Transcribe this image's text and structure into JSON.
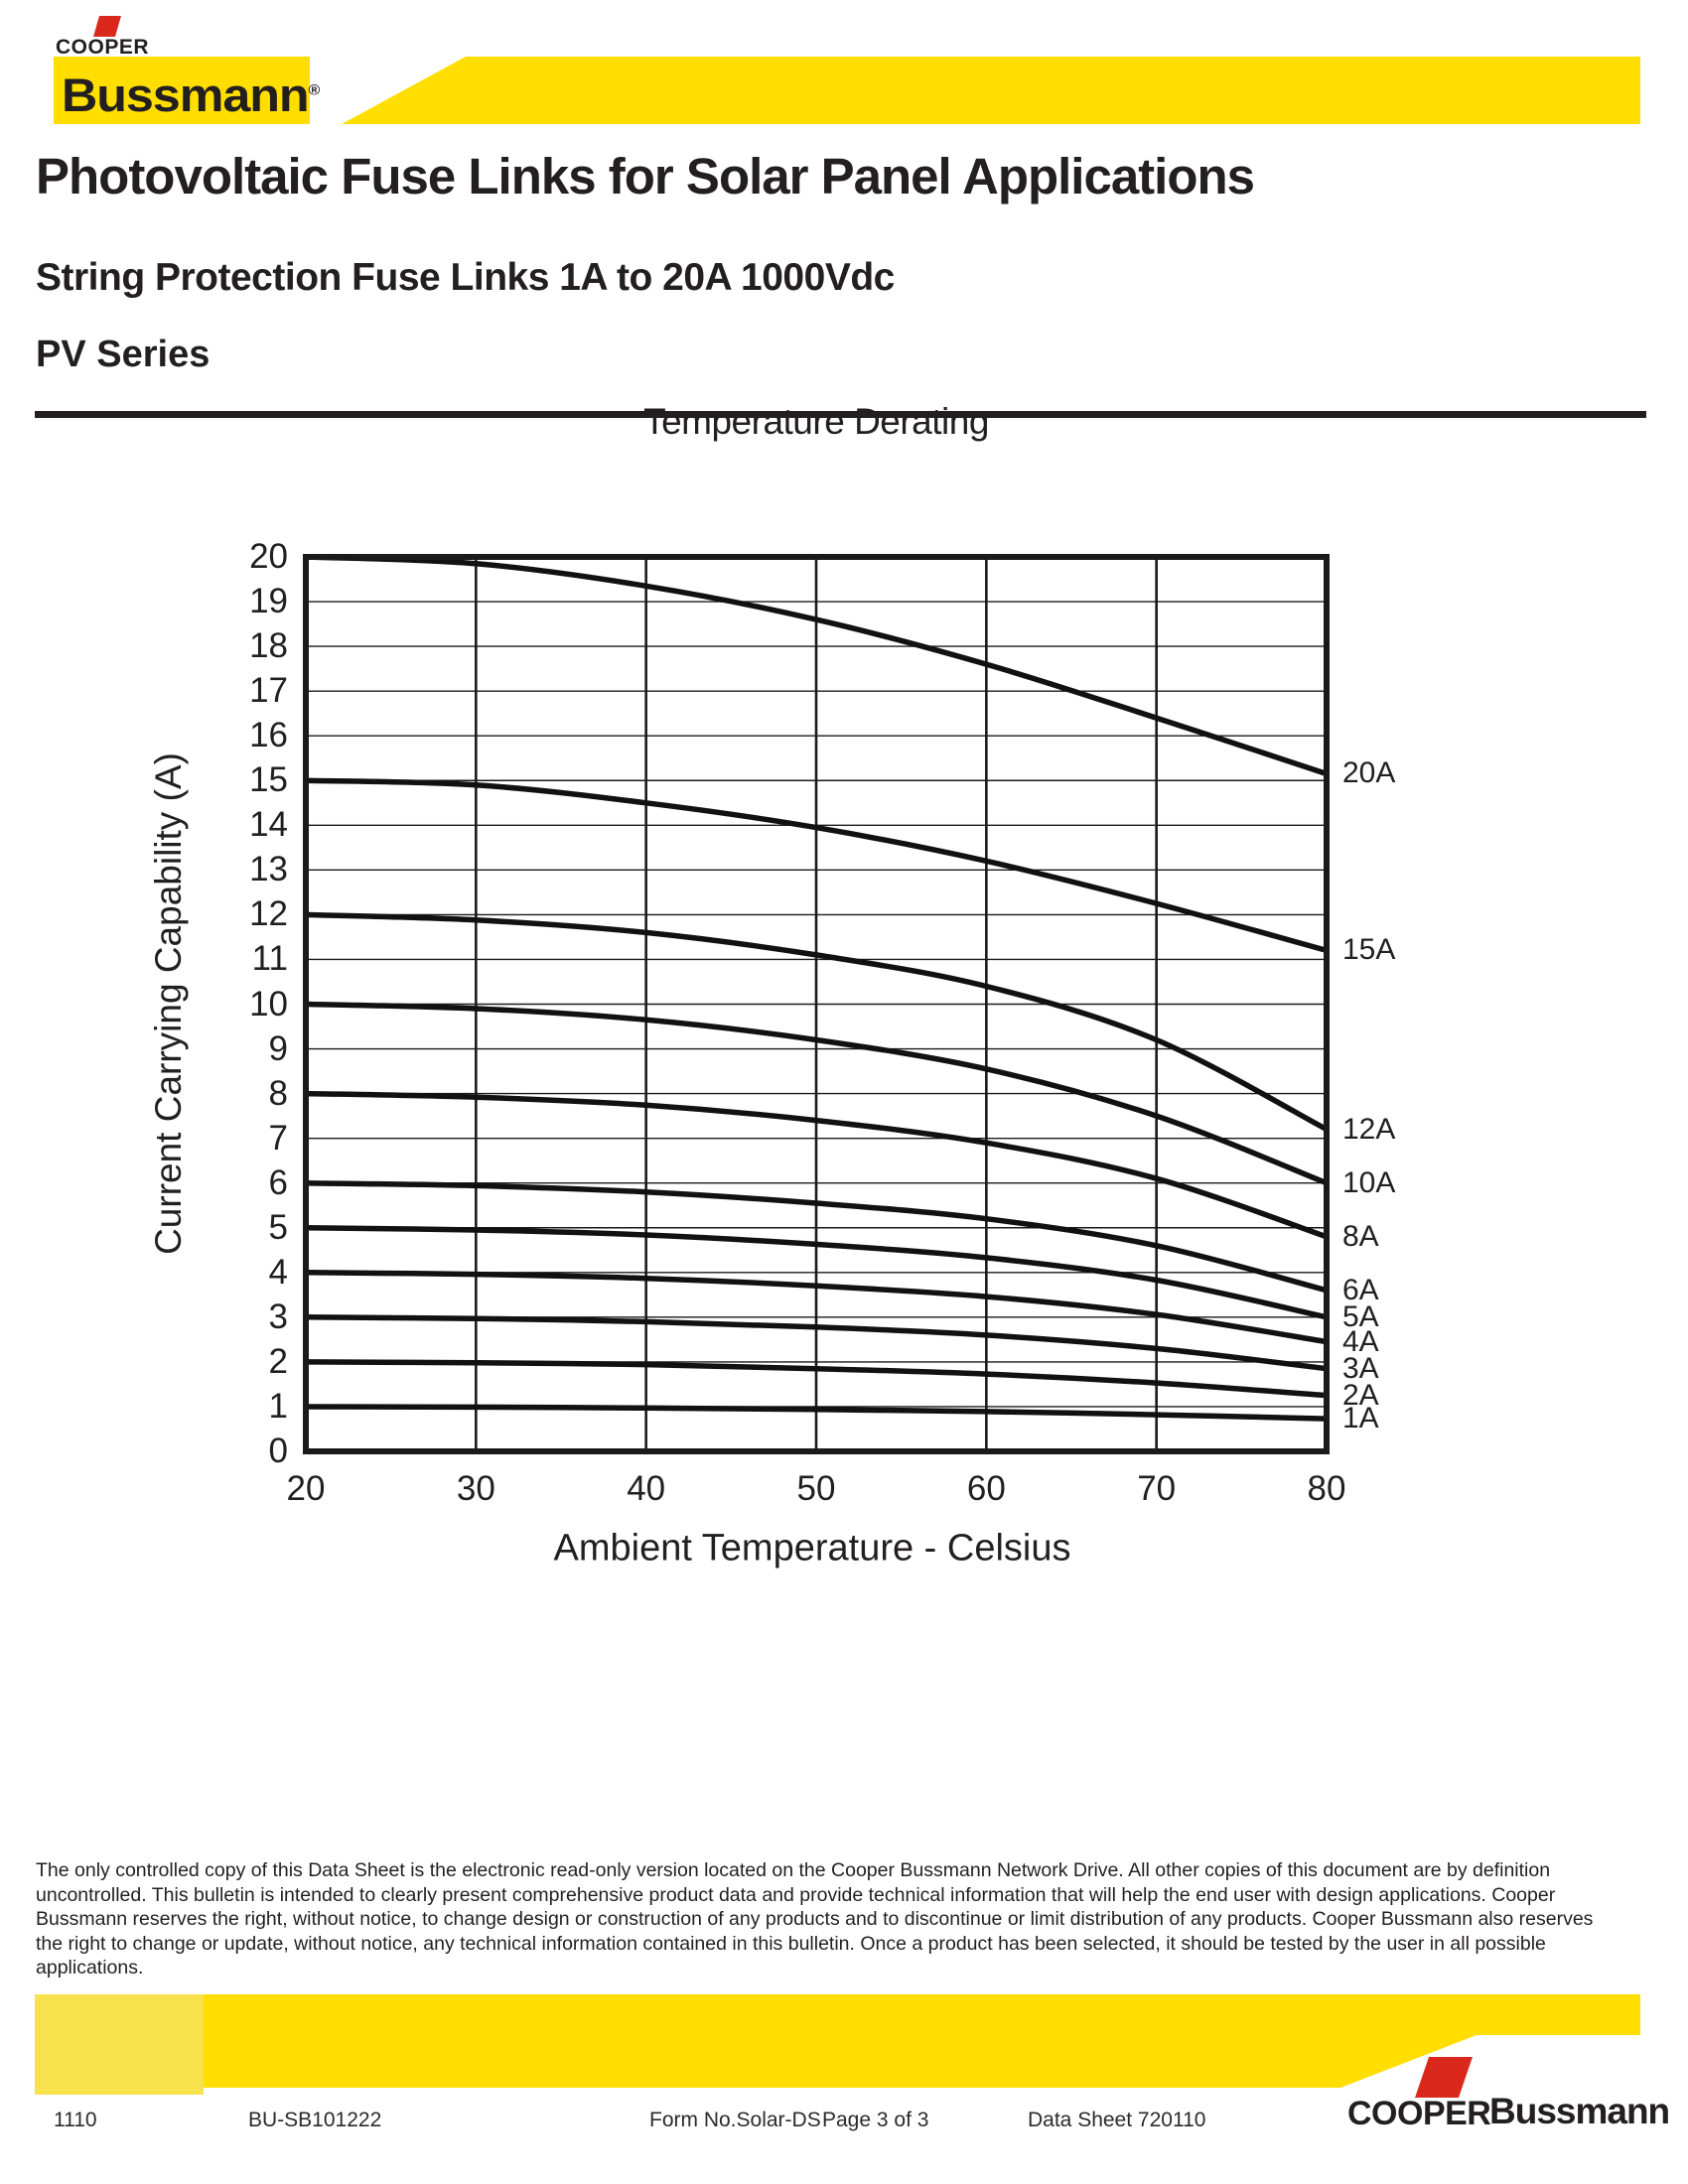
{
  "header": {
    "brand_top": "COOPER",
    "brand_main": "Bussmann",
    "registered_mark": "®",
    "title": "Photovoltaic Fuse Links for Solar Panel Applications",
    "subtitle": "String Protection Fuse Links 1A to 20A 1000Vdc",
    "series_line": "PV Series"
  },
  "colors": {
    "yellow": "#FFDE00",
    "yellow_light": "#F7E24E",
    "red": "#DA291C",
    "ink": "#231F20"
  },
  "chart_data": {
    "type": "line",
    "title": "Temperature Derating",
    "xlabel": "Ambient Temperature - Celsius",
    "ylabel": "Current Carrying Capability (A)",
    "x": [
      20,
      30,
      40,
      50,
      60,
      70,
      80
    ],
    "xlim": [
      20,
      80
    ],
    "ylim": [
      0,
      20
    ],
    "x_tick_step": 10,
    "y_tick_step": 1,
    "grid": true,
    "legend_position": "labels at right end of each curve",
    "series": [
      {
        "name": "20A",
        "values": [
          20,
          19.85,
          19.35,
          18.6,
          17.6,
          16.4,
          15.15
        ]
      },
      {
        "name": "15A",
        "values": [
          15,
          14.9,
          14.5,
          13.95,
          13.2,
          12.25,
          11.2
        ]
      },
      {
        "name": "12A",
        "values": [
          12,
          11.88,
          11.6,
          11.1,
          10.4,
          9.2,
          7.2
        ]
      },
      {
        "name": "10A",
        "values": [
          10,
          9.9,
          9.65,
          9.2,
          8.55,
          7.5,
          6.0
        ]
      },
      {
        "name": "8A",
        "values": [
          8,
          7.92,
          7.74,
          7.4,
          6.9,
          6.1,
          4.8
        ]
      },
      {
        "name": "6A",
        "values": [
          6,
          5.94,
          5.8,
          5.55,
          5.2,
          4.6,
          3.6
        ]
      },
      {
        "name": "5A",
        "values": [
          5,
          4.95,
          4.84,
          4.63,
          4.33,
          3.83,
          3.0
        ]
      },
      {
        "name": "4A",
        "values": [
          4,
          3.96,
          3.87,
          3.7,
          3.46,
          3.06,
          2.45
        ]
      },
      {
        "name": "3A",
        "values": [
          3,
          2.97,
          2.9,
          2.78,
          2.6,
          2.3,
          1.85
        ]
      },
      {
        "name": "2A",
        "values": [
          2,
          1.98,
          1.94,
          1.85,
          1.73,
          1.53,
          1.25
        ]
      },
      {
        "name": "1A",
        "values": [
          1,
          0.99,
          0.97,
          0.94,
          0.89,
          0.82,
          0.73
        ]
      }
    ]
  },
  "footer": {
    "disclaimer": "The only controlled copy of this Data Sheet is the electronic read-only version located on the Cooper Bussmann Network Drive. All other copies of this document are by definition uncontrolled. This bulletin is intended to clearly present comprehensive product data and provide technical information that will help the end user with design applications. Cooper Bussmann reserves the right, without notice, to change design or construction of any products and to discontinue or limit distribution of any products. Cooper Bussmann also reserves the right to change or update, without notice, any technical information contained in this bulletin. Once a product has been selected, it should be tested by the user in all possible applications.",
    "meta": [
      "1110",
      "BU-SB101222",
      "Form No.Solar-DS",
      "Page 3 of 3",
      "Data Sheet 720110"
    ],
    "brand_cooper": "COOPER",
    "brand_bussmann": "Bussmann"
  }
}
